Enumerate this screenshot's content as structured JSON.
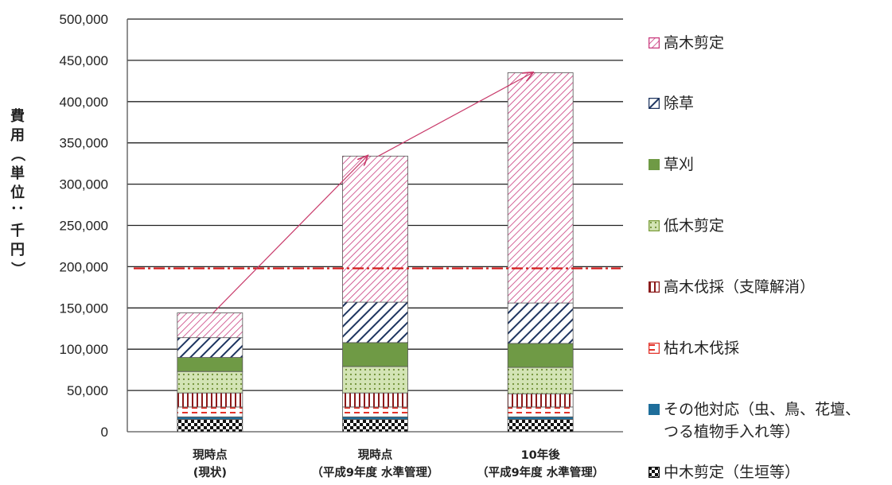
{
  "chart_data": {
    "type": "bar",
    "stacked": true,
    "ylabel": "費用（単位：千円）",
    "ylim": [
      0,
      500000
    ],
    "y_ticks": [
      "0",
      "50,000",
      "100,000",
      "150,000",
      "200,000",
      "250,000",
      "300,000",
      "350,000",
      "400,000",
      "450,000",
      "500,000"
    ],
    "grid": true,
    "legend_placement": "right",
    "reference_line": {
      "value": 198000,
      "style": "dash-dot",
      "color": "#d21a1a"
    },
    "arrows": [
      {
        "from_category": 0,
        "to_category": 1
      },
      {
        "from_category": 1,
        "to_category": 2
      }
    ],
    "categories": [
      "現時点\n(現状)",
      "現時点\n（平成9年度 水準管理）",
      "10年後\n（平成9年度 水準管理）"
    ],
    "series": [
      {
        "name": "中木剪定（生垣等）",
        "values": [
          15000,
          15000,
          15000
        ],
        "color": "#111111",
        "pattern": "checker"
      },
      {
        "name": "その他対応（虫、鳥、花壇、\nつる植物手入れ等）",
        "values": [
          3000,
          3000,
          3000
        ],
        "color": "#1f6e9b",
        "pattern": "solid"
      },
      {
        "name": "枯れ木伐採",
        "values": [
          12000,
          12000,
          12000
        ],
        "color": "#e2332a",
        "pattern": "dash"
      },
      {
        "name": "高木伐採（支障解消）",
        "values": [
          17000,
          17000,
          16000
        ],
        "color": "#8b1a1a",
        "pattern": "vlines"
      },
      {
        "name": "低木剪定",
        "values": [
          26000,
          32000,
          32000
        ],
        "color": "#7a9c3a",
        "pattern": "dots"
      },
      {
        "name": "草刈",
        "values": [
          17000,
          29000,
          29000
        ],
        "color": "#6f9a45",
        "pattern": "solid"
      },
      {
        "name": "除草",
        "values": [
          24000,
          49000,
          49000
        ],
        "color": "#1e3560",
        "pattern": "diag"
      },
      {
        "name": "高木剪定",
        "values": [
          30000,
          177000,
          279000
        ],
        "color": "#c93a7d",
        "pattern": "diagsparse"
      }
    ],
    "legend_order": [
      7,
      6,
      5,
      4,
      3,
      2,
      1,
      0
    ]
  }
}
